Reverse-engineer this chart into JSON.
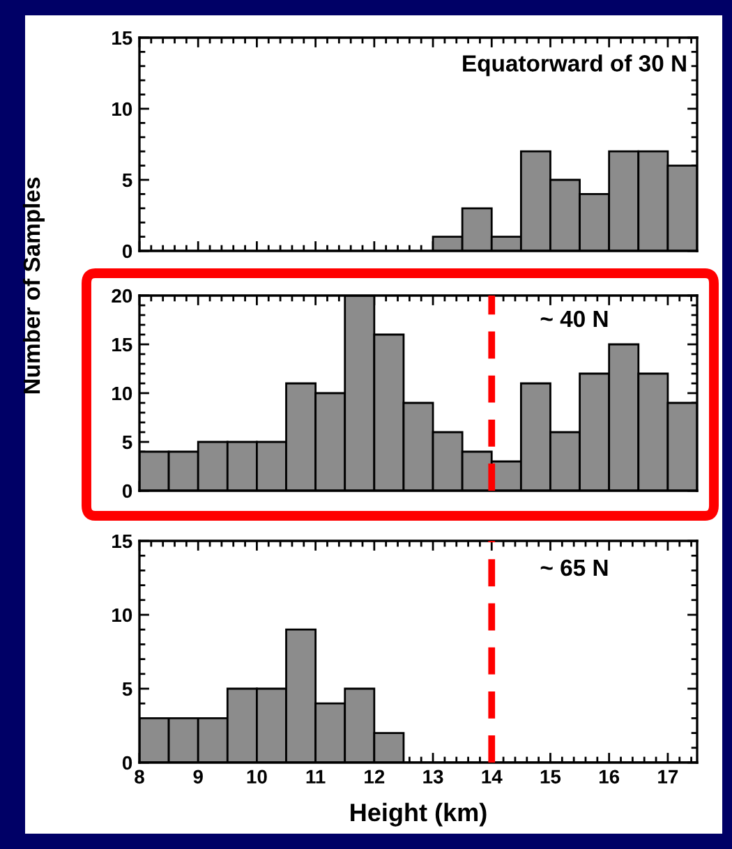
{
  "chart_data": [
    {
      "type": "histogram",
      "annotations": [
        "Equatorward of 30 N"
      ],
      "bins": [
        8,
        8.5,
        9,
        9.5,
        10,
        10.5,
        11,
        11.5,
        12,
        12.5,
        13,
        13.5,
        14,
        14.5,
        15,
        15.5,
        16,
        16.5,
        17,
        17.5
      ],
      "values": [
        0,
        0,
        0,
        0,
        0,
        0,
        0,
        0,
        0,
        0,
        1,
        3,
        1,
        7,
        5,
        4,
        7,
        7,
        6
      ],
      "color": "#8c8c8c",
      "xlim": [
        8,
        17.5
      ],
      "xticks": [
        8,
        9,
        10,
        11,
        12,
        13,
        14,
        15,
        16,
        17
      ],
      "ylim": [
        0,
        15
      ],
      "yticks": [
        0,
        5,
        10,
        15
      ],
      "tick_labels": "y",
      "grid": false,
      "legend": false
    },
    {
      "type": "histogram",
      "annotations": [
        "~ 40 N"
      ],
      "ylabel": "Number of Samples",
      "bins": [
        8,
        8.5,
        9,
        9.5,
        10,
        10.5,
        11,
        11.5,
        12,
        12.5,
        13,
        13.5,
        14,
        14.5,
        15,
        15.5,
        16,
        16.5,
        17,
        17.5
      ],
      "values": [
        4,
        4,
        5,
        5,
        5,
        11,
        10,
        20,
        16,
        9,
        6,
        4,
        3,
        11,
        6,
        12,
        15,
        12,
        9
      ],
      "color": "#8c8c8c",
      "xlim": [
        8,
        17.5
      ],
      "xticks": [
        8,
        9,
        10,
        11,
        12,
        13,
        14,
        15,
        16,
        17
      ],
      "ylim": [
        0,
        20
      ],
      "yticks": [
        0,
        5,
        10,
        15,
        20
      ],
      "tick_labels": "y",
      "grid": false,
      "legend": false,
      "ref_lines": [
        {
          "axis": "x",
          "value": 14,
          "color": "#ff0000",
          "line_style": "dashed"
        }
      ]
    },
    {
      "type": "histogram",
      "annotations": [
        "~ 65 N"
      ],
      "xlabel": "Height (km)",
      "bins": [
        8,
        8.5,
        9,
        9.5,
        10,
        10.5,
        11,
        11.5,
        12,
        12.5,
        13,
        13.5,
        14,
        14.5,
        15,
        15.5,
        16,
        16.5,
        17,
        17.5
      ],
      "values": [
        3,
        3,
        3,
        5,
        5,
        9,
        4,
        5,
        2,
        0,
        0,
        0,
        0,
        0,
        0,
        0,
        0,
        0,
        0
      ],
      "color": "#8c8c8c",
      "xlim": [
        8,
        17.5
      ],
      "xticks": [
        8,
        9,
        10,
        11,
        12,
        13,
        14,
        15,
        16,
        17
      ],
      "ylim": [
        0,
        15
      ],
      "yticks": [
        0,
        5,
        10,
        15
      ],
      "grid": false,
      "legend": false,
      "ref_lines": [
        {
          "axis": "x",
          "value": 14,
          "color": "#ff0000",
          "line_style": "dashed"
        }
      ]
    }
  ]
}
